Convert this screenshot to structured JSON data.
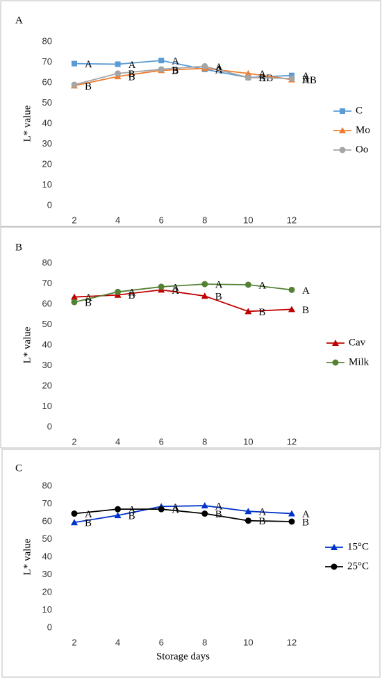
{
  "chart_data": [
    {
      "type": "line",
      "label": "A",
      "ylabel": "L* value",
      "categories": [
        "2",
        "4",
        "6",
        "8",
        "10",
        "12"
      ],
      "ylim": [
        0,
        80
      ],
      "yticks": [
        0,
        10,
        20,
        30,
        40,
        50,
        60,
        70,
        80
      ],
      "series": [
        {
          "name": "C",
          "color": "#5b9bd5",
          "marker": "square",
          "values": [
            69.3,
            69,
            70.8,
            66.5,
            62.5,
            63.5
          ],
          "annotations": [
            "A",
            "A",
            "A",
            "A",
            "AB",
            "A"
          ]
        },
        {
          "name": "Mo",
          "color": "#ed7d31",
          "marker": "triangle",
          "values": [
            58.5,
            63,
            66,
            67,
            64.5,
            61.5
          ],
          "annotations": [
            "B",
            "B",
            "B",
            "A",
            "A",
            "AB"
          ]
        },
        {
          "name": "Oo",
          "color": "#a5a5a5",
          "marker": "circle",
          "values": [
            59,
            64.5,
            66.5,
            68,
            62.5,
            62
          ],
          "annotations": [
            null,
            "B",
            "B",
            "A",
            "B",
            "B"
          ]
        }
      ]
    },
    {
      "type": "line",
      "label": "B",
      "ylabel": "L* value",
      "categories": [
        "2",
        "4",
        "6",
        "8",
        "10",
        "12"
      ],
      "ylim": [
        0,
        80
      ],
      "yticks": [
        0,
        10,
        20,
        30,
        40,
        50,
        60,
        70,
        80
      ],
      "series": [
        {
          "name": "Cav",
          "color": "#c00000",
          "marker": "triangle",
          "values": [
            63.5,
            64.5,
            67,
            64,
            56.5,
            57.5
          ],
          "annotations": [
            "A",
            "B",
            "A",
            "B",
            "B",
            "B"
          ]
        },
        {
          "name": "Milk",
          "color": "#548235",
          "marker": "circle",
          "values": [
            61,
            66,
            68.5,
            69.8,
            69.5,
            67
          ],
          "annotations": [
            "B",
            "A",
            "A",
            "A",
            "A",
            "A"
          ]
        }
      ]
    },
    {
      "type": "line",
      "label": "C",
      "ylabel": "L* value",
      "xlabel": "Storage days",
      "categories": [
        "2",
        "4",
        "6",
        "8",
        "10",
        "12"
      ],
      "ylim": [
        0,
        80
      ],
      "yticks": [
        0,
        10,
        20,
        30,
        40,
        50,
        60,
        70,
        80
      ],
      "series": [
        {
          "name": "15°C",
          "color": "#0033cc",
          "marker": "triangle",
          "values": [
            59.5,
            63.5,
            68.5,
            69,
            65.8,
            64.5
          ],
          "annotations": [
            "B",
            "B",
            "A",
            "A",
            "A",
            "A"
          ]
        },
        {
          "name": "25°C",
          "color": "#000000",
          "marker": "circle",
          "values": [
            64.5,
            67,
            67,
            64.5,
            60.5,
            60
          ],
          "annotations": [
            "A",
            "A",
            "A",
            "B",
            "B",
            "B"
          ]
        }
      ]
    }
  ]
}
